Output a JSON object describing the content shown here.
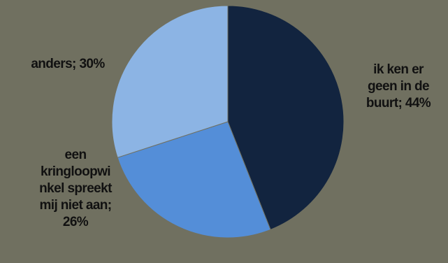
{
  "chart_data": {
    "type": "pie",
    "title": "",
    "series": [
      {
        "label": "ik ken er geen in de buurt",
        "value": 44,
        "color": "#12243F"
      },
      {
        "label": "een kringloopwinkel spreekt mij niet aan",
        "value": 26,
        "color": "#548ED8"
      },
      {
        "label": "anders",
        "value": 30,
        "color": "#8CB4E4"
      }
    ],
    "labels": [
      {
        "lines": [
          "ik ken er",
          "geen in de",
          "buurt; 44%"
        ]
      },
      {
        "lines": [
          "een",
          "kringloopwi",
          "nkel spreekt",
          "mij niet aan;",
          "26%"
        ]
      },
      {
        "lines": [
          "anders; 30%"
        ]
      }
    ]
  }
}
